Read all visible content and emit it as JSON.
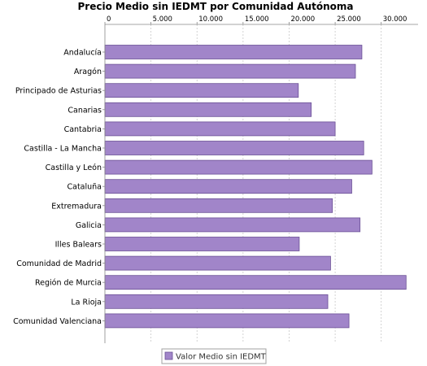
{
  "chart_data": {
    "type": "bar",
    "orientation": "horizontal",
    "title": "Precio Medio sin IEDMT por Comunidad Autónoma",
    "xlim": [
      0,
      34000
    ],
    "tick_values": [
      0,
      5000,
      10000,
      15000,
      20000,
      25000,
      30000
    ],
    "tick_labels": [
      "0",
      "5.000",
      "10.000",
      "15.000",
      "20.000",
      "25.000",
      "30.000"
    ],
    "tick_axis_position": "top",
    "grid": "vertical dashed",
    "legend_position": "bottom-center",
    "categories": [
      "Andalucía",
      "Aragón",
      "Principado de Asturias",
      "Canarias",
      "Cantabria",
      "Castilla - La Mancha",
      "Castilla y León",
      "Cataluña",
      "Extremadura",
      "Galicia",
      "Illes Balears",
      "Comunidad de Madrid",
      "Región de Murcia",
      "La Rioja",
      "Comunidad Valenciana"
    ],
    "series": [
      {
        "name": "Valor Medio sin IEDMT",
        "color": "#a185c9",
        "values": [
          27900,
          27200,
          21000,
          22400,
          25000,
          28100,
          29000,
          26800,
          24700,
          27700,
          21100,
          24500,
          32700,
          24200,
          26500
        ]
      }
    ]
  },
  "colors": {
    "bar_fill": "#a185c9",
    "bar_stroke": "#6a4f95",
    "grid": "#c8c8c8",
    "axis": "#888888",
    "legend_border": "#a0a0a0"
  }
}
